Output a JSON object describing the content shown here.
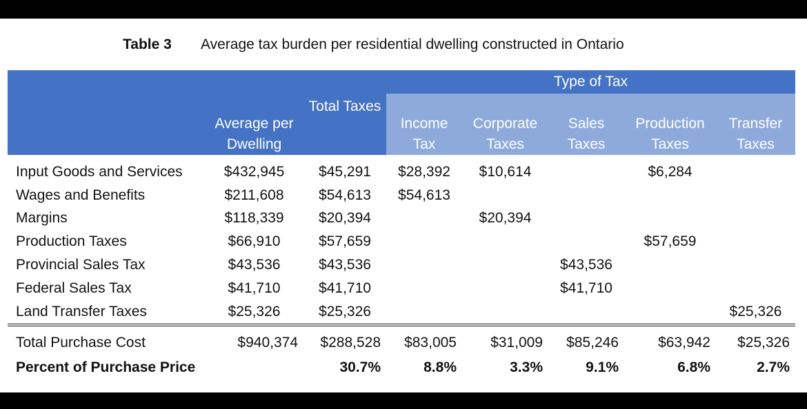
{
  "caption": {
    "number": "Table 3",
    "title": "Average tax burden per residential dwelling constructed in Ontario"
  },
  "header": {
    "group_label": "Type of Tax",
    "average": "Average per Dwelling",
    "total": "Total Taxes",
    "income": "Income Tax",
    "corporate": "Corporate Taxes",
    "sales": "Sales Taxes",
    "production": "Production Taxes",
    "transfer": "Transfer Taxes"
  },
  "rows": [
    {
      "label": "Input Goods and Services",
      "average": "$432,945",
      "total": "$45,291",
      "income": "$28,392",
      "corporate": "$10,614",
      "sales": "",
      "production": "$6,284",
      "transfer": ""
    },
    {
      "label": "Wages and Benefits",
      "average": "$211,608",
      "total": "$54,613",
      "income": "$54,613",
      "corporate": "",
      "sales": "",
      "production": "",
      "transfer": ""
    },
    {
      "label": "Margins",
      "average": "$118,339",
      "total": "$20,394",
      "income": "",
      "corporate": "$20,394",
      "sales": "",
      "production": "",
      "transfer": ""
    },
    {
      "label": "Production Taxes",
      "average": "$66,910",
      "total": "$57,659",
      "income": "",
      "corporate": "",
      "sales": "",
      "production": "$57,659",
      "transfer": ""
    },
    {
      "label": "Provincial Sales Tax",
      "average": "$43,536",
      "total": "$43,536",
      "income": "",
      "corporate": "",
      "sales": "$43,536",
      "production": "",
      "transfer": ""
    },
    {
      "label": "Federal Sales Tax",
      "average": "$41,710",
      "total": "$41,710",
      "income": "",
      "corporate": "",
      "sales": "$41,710",
      "production": "",
      "transfer": ""
    },
    {
      "label": "Land Transfer Taxes",
      "average": "$25,326",
      "total": "$25,326",
      "income": "",
      "corporate": "",
      "sales": "",
      "production": "",
      "transfer": "$25,326"
    }
  ],
  "total_row": {
    "label": "Total Purchase Cost",
    "average": "$940,374",
    "total": "$288,528",
    "income": "$83,005",
    "corporate": "$31,009",
    "sales": "$85,246",
    "production": "$63,942",
    "transfer": "$25,326"
  },
  "percent_row": {
    "label": "Percent of Purchase Price",
    "average": "",
    "total": "30.7%",
    "income": "8.8%",
    "corporate": "3.3%",
    "sales": "9.1%",
    "production": "6.8%",
    "transfer": "2.7%"
  }
}
